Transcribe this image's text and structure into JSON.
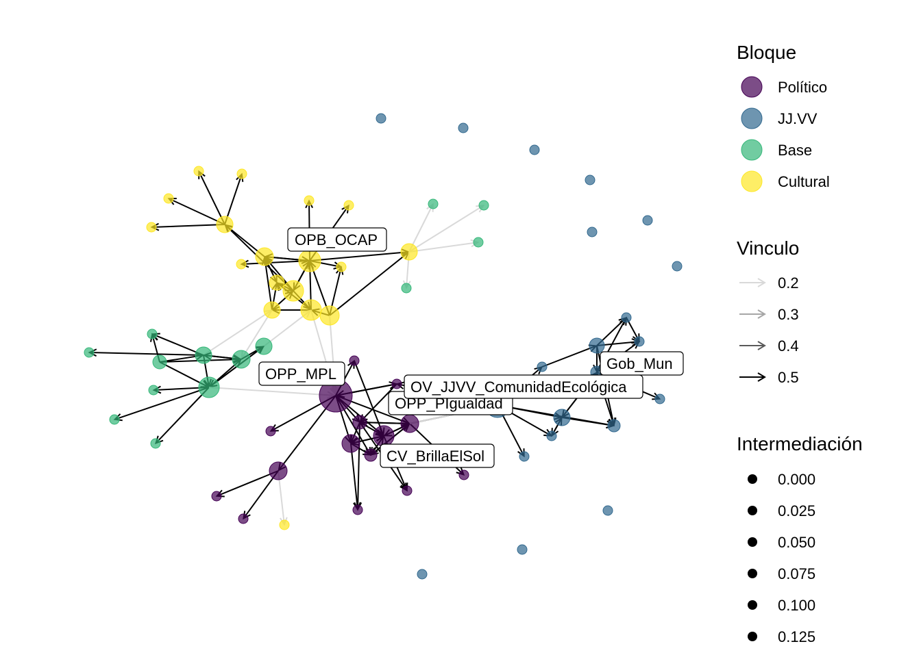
{
  "legend": {
    "bloque": {
      "title": "Bloque",
      "items": [
        {
          "label": "Político",
          "color": "#440154"
        },
        {
          "label": "JJ.VV",
          "color": "#31688E"
        },
        {
          "label": "Base",
          "color": "#35B779"
        },
        {
          "label": "Cultural",
          "color": "#FDE725"
        }
      ]
    },
    "vinculo": {
      "title": "Vinculo",
      "items": [
        {
          "label": "0.2",
          "color": "#d9d9d9"
        },
        {
          "label": "0.3",
          "color": "#a6a6a6"
        },
        {
          "label": "0.4",
          "color": "#5a5a5a"
        },
        {
          "label": "0.5",
          "color": "#000000"
        }
      ]
    },
    "intermediacion": {
      "title": "Intermediación",
      "items": [
        "0.000",
        "0.025",
        "0.050",
        "0.075",
        "0.100",
        "0.125"
      ]
    }
  },
  "node_labels": [
    "OPB_OCAP",
    "OPP_MPL",
    "OV_JJVV_ComunidadEcológica",
    "OPP_PIgualdad",
    "CV_BrillaElSol",
    "Gob_Mun"
  ],
  "network": {
    "groups": [
      "Político",
      "JJ.VV",
      "Base",
      "Cultural"
    ],
    "node_count": 72,
    "edge_weights": [
      0.2,
      0.3,
      0.4,
      0.5
    ]
  }
}
